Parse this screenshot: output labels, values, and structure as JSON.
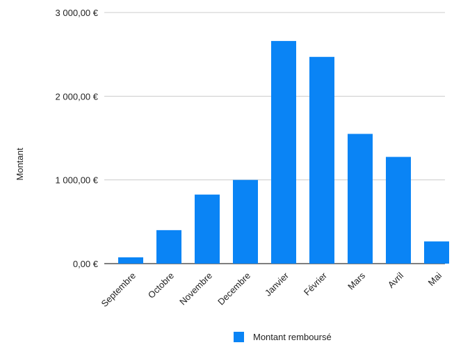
{
  "chart_data": {
    "type": "bar",
    "title": "",
    "xlabel": "",
    "ylabel": "Montant",
    "categories": [
      "Septembre",
      "Octobre",
      "Novembre",
      "Decembre",
      "Janvier",
      "Février",
      "Mars",
      "Avril",
      "Mai"
    ],
    "series": [
      {
        "name": "Montant remboursé",
        "color": "#0a84f5",
        "values": [
          75,
          400,
          825,
          1000,
          2660,
          2470,
          1550,
          1275,
          265
        ]
      }
    ],
    "ylim": [
      0,
      3000
    ],
    "yticks": [
      0,
      1000,
      2000,
      3000
    ],
    "ytick_labels": [
      "0,00 €",
      "1 000,00 €",
      "2 000,00 €",
      "3 000,00 €"
    ],
    "grid": true,
    "legend_position": "bottom"
  }
}
